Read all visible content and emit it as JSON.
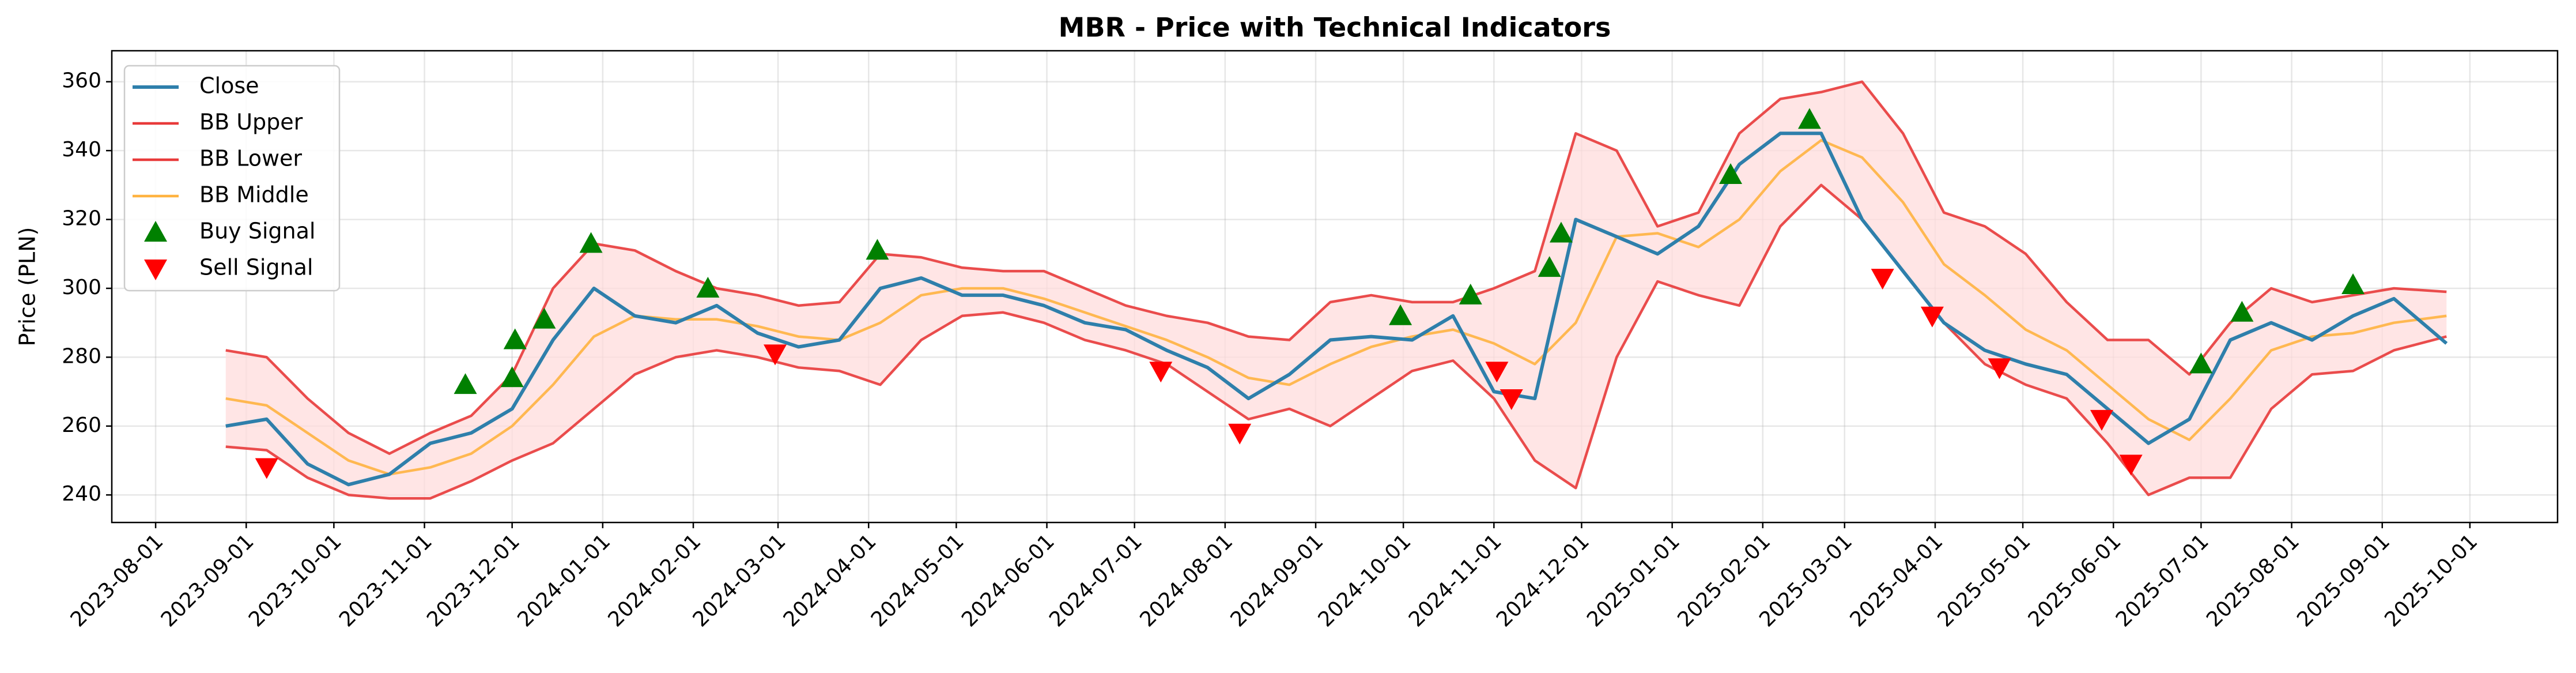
{
  "chart_data": {
    "type": "line",
    "title": "MBR - Price with Technical Indicators",
    "ylabel": "Price (PLN)",
    "x": [
      "2023-08-25",
      "2023-09-08",
      "2023-09-22",
      "2023-10-06",
      "2023-10-20",
      "2023-11-03",
      "2023-11-17",
      "2023-12-01",
      "2023-12-15",
      "2023-12-29",
      "2024-01-12",
      "2024-01-26",
      "2024-02-09",
      "2024-02-23",
      "2024-03-08",
      "2024-03-22",
      "2024-04-05",
      "2024-04-19",
      "2024-05-03",
      "2024-05-17",
      "2024-05-31",
      "2024-06-14",
      "2024-06-28",
      "2024-07-12",
      "2024-07-26",
      "2024-08-09",
      "2024-08-23",
      "2024-09-06",
      "2024-09-20",
      "2024-10-04",
      "2024-10-18",
      "2024-11-01",
      "2024-11-15",
      "2024-11-29",
      "2024-12-13",
      "2024-12-27",
      "2025-01-10",
      "2025-01-24",
      "2025-02-07",
      "2025-02-21",
      "2025-03-07",
      "2025-03-21",
      "2025-04-04",
      "2025-04-18",
      "2025-05-02",
      "2025-05-16",
      "2025-05-30",
      "2025-06-13",
      "2025-06-27",
      "2025-07-11",
      "2025-07-25",
      "2025-08-08",
      "2025-08-22",
      "2025-09-05",
      "2025-09-23"
    ],
    "series": [
      {
        "name": "Close",
        "color": "#2e7fab",
        "width": 6,
        "values": [
          260,
          262,
          249,
          243,
          246,
          255,
          258,
          265,
          285,
          300,
          292,
          290,
          295,
          287,
          283,
          285,
          300,
          303,
          298,
          298,
          295,
          290,
          288,
          282,
          277,
          268,
          275,
          285,
          286,
          285,
          292,
          270,
          268,
          320,
          315,
          310,
          318,
          336,
          345,
          345,
          320,
          305,
          290,
          282,
          278,
          275,
          265,
          255,
          262,
          285,
          290,
          285,
          292,
          297,
          284
        ]
      },
      {
        "name": "BB Upper",
        "color": "#e83a3a",
        "width": 4.5,
        "values": [
          282,
          280,
          268,
          258,
          252,
          258,
          263,
          275,
          300,
          313,
          311,
          305,
          300,
          298,
          295,
          296,
          310,
          309,
          306,
          305,
          305,
          300,
          295,
          292,
          290,
          286,
          285,
          296,
          298,
          296,
          296,
          300,
          305,
          345,
          340,
          318,
          322,
          345,
          355,
          357,
          360,
          345,
          322,
          318,
          310,
          296,
          285,
          285,
          275,
          290,
          300,
          296,
          298,
          300,
          299
        ]
      },
      {
        "name": "BB Lower",
        "color": "#e83a3a",
        "width": 4.5,
        "values": [
          254,
          253,
          245,
          240,
          239,
          239,
          244,
          250,
          255,
          265,
          275,
          280,
          282,
          280,
          277,
          276,
          272,
          285,
          292,
          293,
          290,
          285,
          282,
          278,
          270,
          262,
          265,
          260,
          268,
          276,
          279,
          268,
          250,
          242,
          280,
          302,
          298,
          295,
          318,
          330,
          320,
          305,
          290,
          278,
          272,
          268,
          255,
          240,
          245,
          245,
          265,
          275,
          276,
          282,
          286
        ]
      },
      {
        "name": "BB Middle",
        "color": "#ffb340",
        "width": 4.5,
        "values": [
          268,
          266,
          258,
          250,
          246,
          248,
          252,
          260,
          272,
          286,
          292,
          291,
          291,
          289,
          286,
          285,
          290,
          298,
          300,
          300,
          297,
          293,
          289,
          285,
          280,
          274,
          272,
          278,
          283,
          286,
          288,
          284,
          278,
          290,
          315,
          316,
          312,
          320,
          334,
          343,
          338,
          325,
          307,
          298,
          288,
          282,
          272,
          262,
          256,
          268,
          282,
          286,
          287,
          290,
          292
        ]
      },
      {
        "name": "Buy Signal",
        "color": "#008000",
        "marker": "up",
        "x": [
          "2023-11-15",
          "2023-12-01",
          "2023-12-02",
          "2023-12-12",
          "2023-12-28",
          "2024-02-06",
          "2024-04-04",
          "2024-09-30",
          "2024-10-24",
          "2024-11-20",
          "2024-11-24",
          "2025-01-21",
          "2025-02-17",
          "2025-07-01",
          "2025-07-15",
          "2025-08-22"
        ],
        "values": [
          272,
          274,
          285,
          291,
          313,
          300,
          311,
          292,
          298,
          306,
          316,
          333,
          349,
          278,
          293,
          301
        ]
      },
      {
        "name": "Sell Signal",
        "color": "#ff0000",
        "marker": "down",
        "x": [
          "2023-09-08",
          "2024-02-29",
          "2024-07-10",
          "2024-08-06",
          "2024-11-02",
          "2024-11-07",
          "2025-03-14",
          "2025-03-31",
          "2025-04-23",
          "2025-05-28",
          "2025-06-07"
        ],
        "values": [
          248,
          281,
          276,
          258,
          276,
          268,
          303,
          292,
          277,
          262,
          249
        ]
      }
    ],
    "fill_between": {
      "series": [
        1,
        2
      ],
      "color": "#ffdcdc"
    },
    "xlim": [
      "2023-07-17",
      "2025-10-31"
    ],
    "xticks": [
      "2023-08-01",
      "2023-09-01",
      "2023-10-01",
      "2023-11-01",
      "2023-12-01",
      "2024-01-01",
      "2024-02-01",
      "2024-03-01",
      "2024-04-01",
      "2024-05-01",
      "2024-06-01",
      "2024-07-01",
      "2024-08-01",
      "2024-09-01",
      "2024-10-01",
      "2024-11-01",
      "2024-12-01",
      "2025-01-01",
      "2025-02-01",
      "2025-03-01",
      "2025-04-01",
      "2025-05-01",
      "2025-06-01",
      "2025-07-01",
      "2025-08-01",
      "2025-09-01",
      "2025-10-01"
    ],
    "ylim": [
      232,
      369
    ],
    "yticks": [
      240,
      260,
      280,
      300,
      320,
      340,
      360
    ],
    "grid": true,
    "legend": "upper left"
  }
}
